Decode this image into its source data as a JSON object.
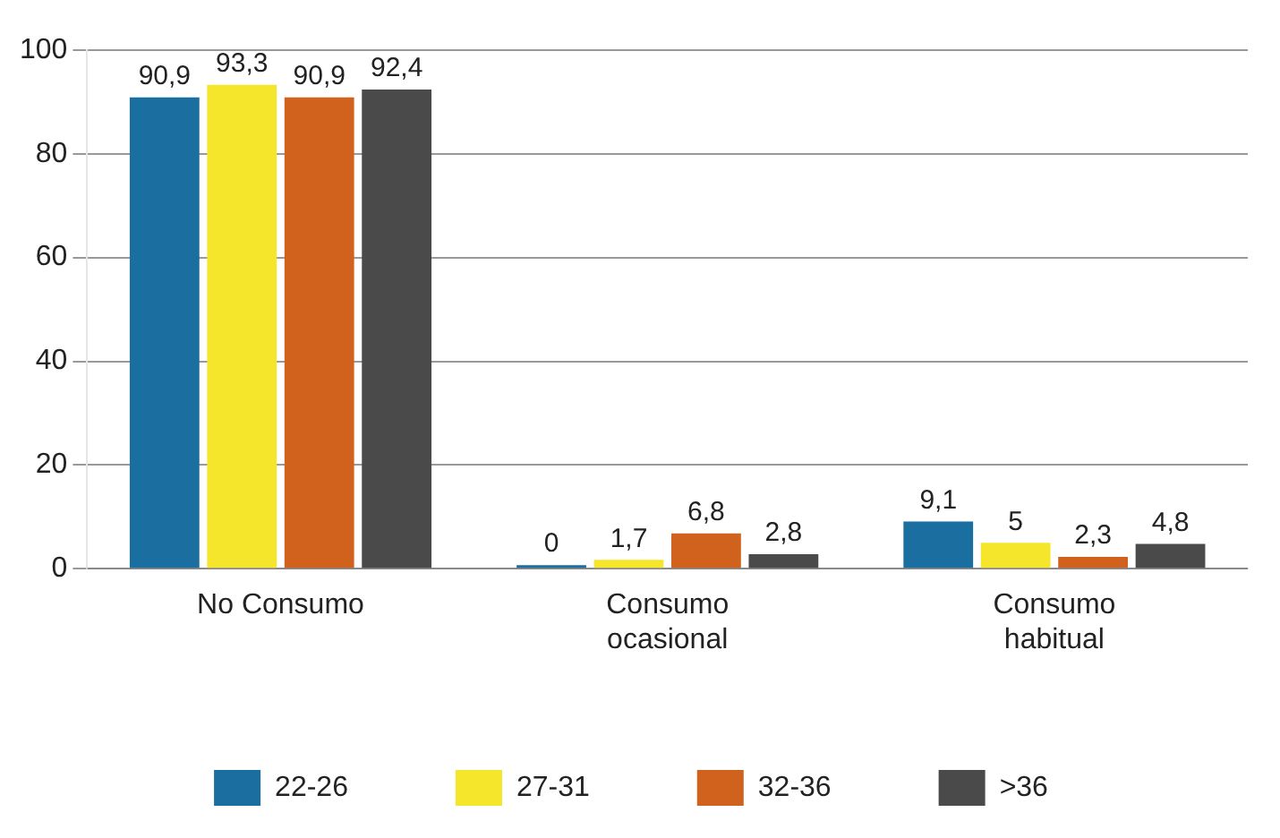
{
  "chart_data": {
    "type": "bar",
    "categories": [
      "No Consumo",
      "Consumo ocasional",
      "Consumo habitual"
    ],
    "series": [
      {
        "name": "22-26",
        "color": "#1a6fa0",
        "values": [
          90.9,
          0,
          9.1
        ],
        "value_labels": [
          "90,9",
          "0",
          "9,1"
        ]
      },
      {
        "name": "27-31",
        "color": "#f5e62c",
        "values": [
          93.3,
          1.7,
          5
        ],
        "value_labels": [
          "93,3",
          "1,7",
          "5"
        ]
      },
      {
        "name": "32-36",
        "color": "#d0621e",
        "values": [
          90.9,
          6.8,
          2.3
        ],
        "value_labels": [
          "90,9",
          "6,8",
          "2,3"
        ]
      },
      {
        "name": ">36",
        "color": "#4a4a4a",
        "values": [
          92.4,
          2.8,
          4.8
        ],
        "value_labels": [
          "92,4",
          "2,8",
          "4,8"
        ]
      }
    ],
    "ylim": [
      0,
      100
    ],
    "yticks": [
      0,
      20,
      40,
      60,
      80,
      100
    ],
    "grid": "y",
    "legend": "bottom"
  }
}
